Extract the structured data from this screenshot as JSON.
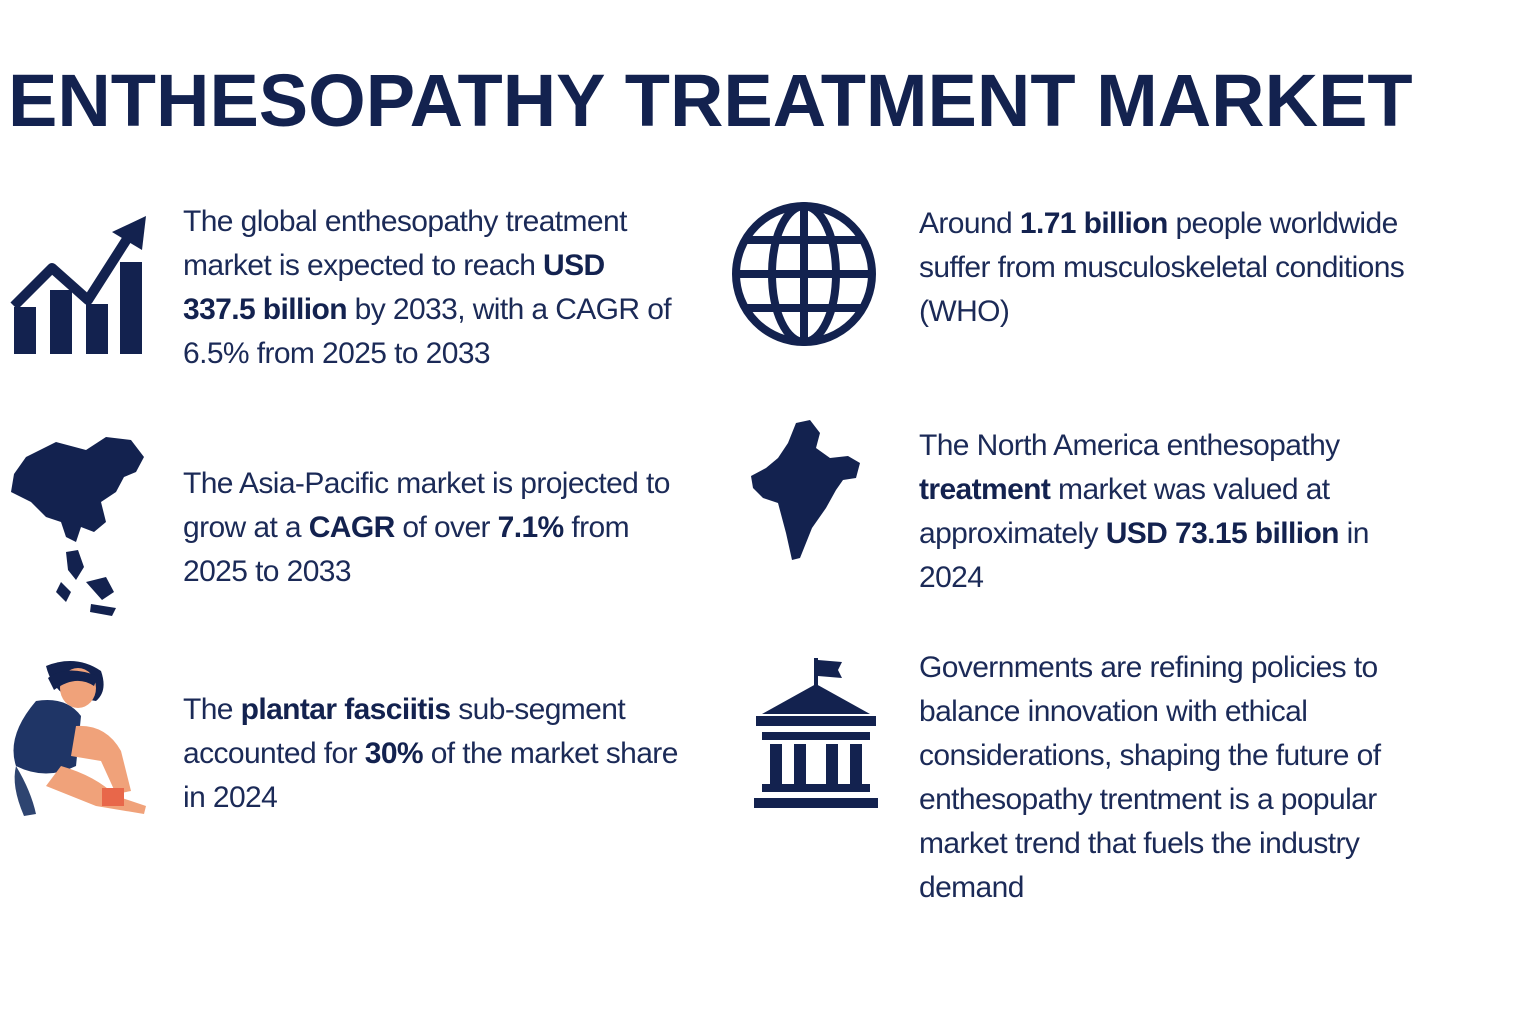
{
  "title": "ENTHESOPATHY TREATMENT MARKET",
  "facts": [
    {
      "segments": [
        {
          "text": "The global enthesopathy treatment market is expected to reach "
        },
        {
          "text": "USD 337.5 billion",
          "bold": true
        },
        {
          "text": " by 2033, with a CAGR of 6.5% from 2025 to 2033"
        }
      ]
    },
    {
      "segments": [
        {
          "text": "The Asia-Pacific market is projected to grow at a "
        },
        {
          "text": "CAGR",
          "bold": true
        },
        {
          "text": " of over "
        },
        {
          "text": "7.1%",
          "bold": true
        },
        {
          "text": " from 2025 to 2033"
        }
      ]
    },
    {
      "segments": [
        {
          "text": "The "
        },
        {
          "text": "plantar fasciitis",
          "bold": true
        },
        {
          "text": " sub-segment accounted for "
        },
        {
          "text": "30%",
          "bold": true
        },
        {
          "text": " of the market share in 2024"
        }
      ]
    },
    {
      "segments": [
        {
          "text": "Around "
        },
        {
          "text": "1.71 billion",
          "bold": true
        },
        {
          "text": " people worldwide suffer from musculoskeletal conditions (WHO)"
        }
      ]
    },
    {
      "segments": [
        {
          "text": "The North America enthesopathy "
        },
        {
          "text": "treatment",
          "bold": true
        },
        {
          "text": " market was valued at approximately "
        },
        {
          "text": "USD 73.15 billion",
          "bold": true
        },
        {
          "text": " in 2024"
        }
      ]
    },
    {
      "segments": [
        {
          "text": "Governments are refining policies to balance innovation with ethical considerations, shaping the future of enthesopathy trentment is a popular market trend that fuels the industry demand"
        }
      ]
    }
  ]
}
